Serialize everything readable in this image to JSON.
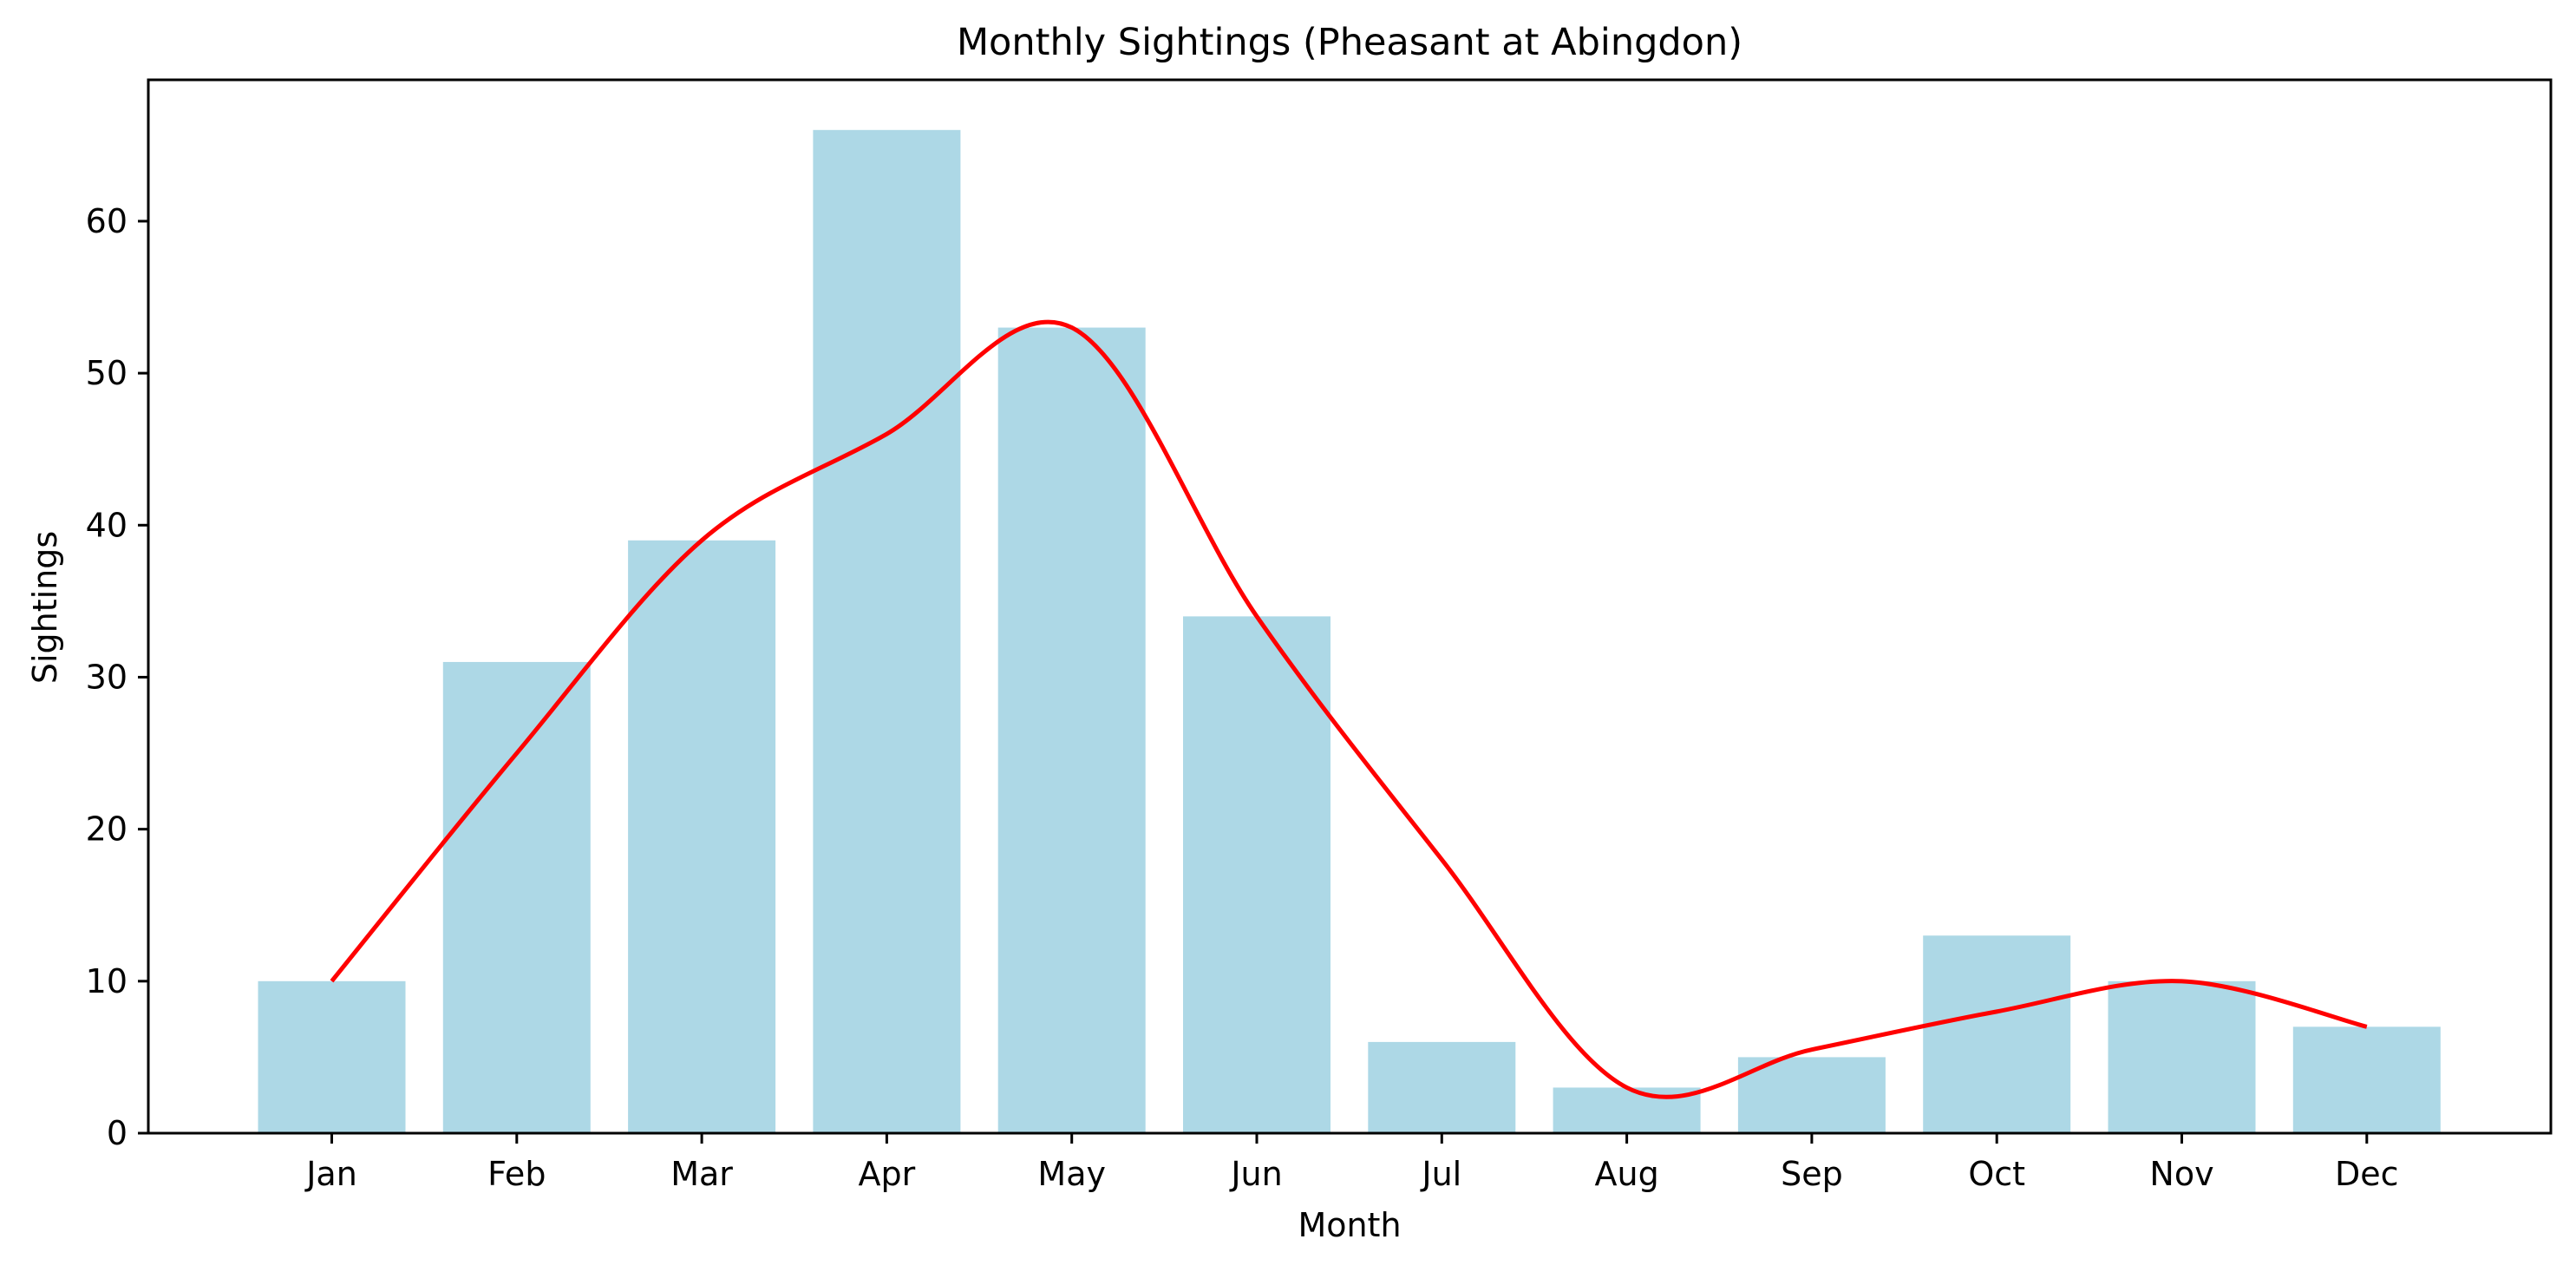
{
  "chart_data": {
    "type": "bar",
    "title": "Monthly Sightings (Pheasant at Abingdon)",
    "xlabel": "Month",
    "ylabel": "Sightings",
    "categories": [
      "Jan",
      "Feb",
      "Mar",
      "Apr",
      "May",
      "Jun",
      "Jul",
      "Aug",
      "Sep",
      "Oct",
      "Nov",
      "Dec"
    ],
    "series": [
      {
        "type": "bar",
        "values": [
          10,
          31,
          39,
          66,
          53,
          34,
          6,
          3,
          5,
          13,
          10,
          7
        ],
        "color": "#add8e6"
      },
      {
        "type": "line",
        "smooth": true,
        "values": [
          10,
          25,
          39,
          46,
          53,
          34,
          18,
          3,
          5.5,
          8,
          10,
          7
        ],
        "color": "#ff0000"
      }
    ],
    "yticks": [
      0,
      10,
      20,
      30,
      40,
      50,
      60
    ],
    "ylim": [
      0,
      69.3
    ],
    "grid": false,
    "legend": "none"
  }
}
